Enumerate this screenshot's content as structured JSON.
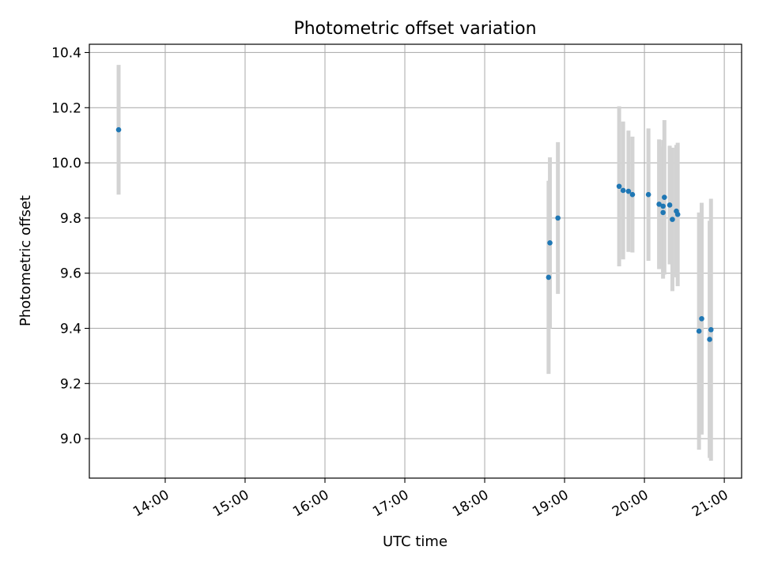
{
  "chart_data": {
    "type": "scatter",
    "title": "Photometric offset variation",
    "xlabel": "UTC time",
    "ylabel": "Photometric offset",
    "x_axis": {
      "kind": "time",
      "range": [
        "13:03",
        "21:13"
      ],
      "ticks": [
        "14:00",
        "15:00",
        "16:00",
        "17:00",
        "18:00",
        "19:00",
        "20:00",
        "21:00"
      ]
    },
    "y_axis": {
      "range": [
        8.857,
        10.43
      ],
      "ticks": [
        "9.0",
        "9.2",
        "9.4",
        "9.6",
        "9.8",
        "10.0",
        "10.2",
        "10.4"
      ]
    },
    "grid": true,
    "legend": "none",
    "colors": {
      "point": "#1f77b4",
      "errorbar": "#d3d3d3",
      "grid": "#b0b0b0"
    },
    "series": [
      {
        "points": [
          {
            "x": "13:25",
            "y": 10.12,
            "err": 0.235
          },
          {
            "x": "18:48",
            "y": 9.585,
            "err": 0.35
          },
          {
            "x": "18:49",
            "y": 9.71,
            "err": 0.31
          },
          {
            "x": "18:55",
            "y": 9.8,
            "err": 0.275
          },
          {
            "x": "19:41",
            "y": 9.915,
            "err": 0.29
          },
          {
            "x": "19:44",
            "y": 9.9,
            "err": 0.25
          },
          {
            "x": "19:48",
            "y": 9.897,
            "err": 0.22
          },
          {
            "x": "19:51",
            "y": 9.885,
            "err": 0.21
          },
          {
            "x": "20:03",
            "y": 9.885,
            "err": 0.24
          },
          {
            "x": "20:11",
            "y": 9.85,
            "err": 0.235
          },
          {
            "x": "20:14",
            "y": 9.82,
            "err": 0.24
          },
          {
            "x": "20:14",
            "y": 9.843,
            "err": 0.24
          },
          {
            "x": "20:15",
            "y": 9.875,
            "err": 0.28
          },
          {
            "x": "20:19",
            "y": 9.847,
            "err": 0.215
          },
          {
            "x": "20:21",
            "y": 9.795,
            "err": 0.26
          },
          {
            "x": "20:24",
            "y": 9.825,
            "err": 0.24
          },
          {
            "x": "20:25",
            "y": 9.813,
            "err": 0.26
          },
          {
            "x": "20:41",
            "y": 9.39,
            "err": 0.43
          },
          {
            "x": "20:43",
            "y": 9.435,
            "err": 0.42
          },
          {
            "x": "20:49",
            "y": 9.36,
            "err": 0.43
          },
          {
            "x": "20:50",
            "y": 9.395,
            "err": 0.475
          }
        ]
      }
    ]
  }
}
